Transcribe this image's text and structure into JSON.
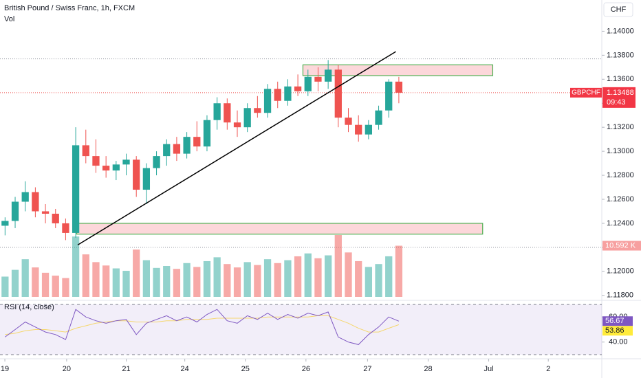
{
  "header": {
    "title": "British Pound / Swiss Franc, 1h, FXCM",
    "volume_label": "Vol",
    "currency": "CHF",
    "symbol": "GBPCHF",
    "countdown": "09:43"
  },
  "chart_data": {
    "type": "candlestick",
    "up_color": "#26a69a",
    "down_color": "#ef5350",
    "xlim": [
      0,
      59.6
    ],
    "xticks": [
      {
        "value": 0.48,
        "label": "19"
      },
      {
        "value": 6.6,
        "label": "20"
      },
      {
        "value": 12.5,
        "label": "21"
      },
      {
        "value": 18.3,
        "label": "24"
      },
      {
        "value": 24.3,
        "label": "25"
      },
      {
        "value": 30.3,
        "label": "26"
      },
      {
        "value": 36.4,
        "label": "27"
      },
      {
        "value": 42.4,
        "label": "28"
      },
      {
        "value": 48.4,
        "label": "Jul"
      },
      {
        "value": 54.3,
        "label": "2"
      }
    ],
    "ylim": [
      1.1177,
      1.1426
    ],
    "yticks": [
      {
        "value": 1.14,
        "label": "1.14000"
      },
      {
        "value": 1.138,
        "label": "1.13800"
      },
      {
        "value": 1.136,
        "label": "1.13600"
      },
      {
        "value": 1.134,
        "label": "1.13400"
      },
      {
        "value": 1.132,
        "label": "1.13200"
      },
      {
        "value": 1.13,
        "label": "1.13000"
      },
      {
        "value": 1.128,
        "label": "1.12800"
      },
      {
        "value": 1.126,
        "label": "1.12600"
      },
      {
        "value": 1.124,
        "label": "1.12400"
      },
      {
        "value": 1.122,
        "label": "1.12200"
      },
      {
        "value": 1.12,
        "label": "1.12000"
      },
      {
        "value": 1.118,
        "label": "1.11800"
      }
    ],
    "open": [
      1.1238,
      1.1242,
      1.1258,
      1.1266,
      1.125,
      1.1248,
      1.124,
      1.1232,
      1.1305,
      1.1296,
      1.1288,
      1.1284,
      1.1289,
      1.1293,
      1.1268,
      1.1286,
      1.1296,
      1.1306,
      1.1298,
      1.1312,
      1.1304,
      1.1326,
      1.134,
      1.1324,
      1.132,
      1.1336,
      1.1332,
      1.1352,
      1.1342,
      1.1354,
      1.135,
      1.1362,
      1.1358,
      1.1368,
      1.1328,
      1.1322,
      1.1314,
      1.1322,
      1.1334,
      1.1358
    ],
    "high": [
      1.1245,
      1.1262,
      1.1275,
      1.127,
      1.1256,
      1.1252,
      1.1244,
      1.132,
      1.1318,
      1.131,
      1.1296,
      1.1292,
      1.1298,
      1.1296,
      1.129,
      1.13,
      1.131,
      1.1312,
      1.1316,
      1.1325,
      1.133,
      1.1345,
      1.1344,
      1.1334,
      1.134,
      1.1346,
      1.1356,
      1.1358,
      1.136,
      1.1364,
      1.1368,
      1.137,
      1.1376,
      1.1372,
      1.1336,
      1.133,
      1.1326,
      1.1338,
      1.136,
      1.1362
    ],
    "low": [
      1.123,
      1.1236,
      1.125,
      1.1245,
      1.124,
      1.1236,
      1.1226,
      1.1228,
      1.129,
      1.1282,
      1.1278,
      1.1276,
      1.128,
      1.1262,
      1.1256,
      1.128,
      1.1288,
      1.1292,
      1.1294,
      1.13,
      1.13,
      1.1318,
      1.1318,
      1.1312,
      1.1316,
      1.1328,
      1.1328,
      1.1336,
      1.1338,
      1.1346,
      1.1346,
      1.135,
      1.1352,
      1.132,
      1.1316,
      1.1308,
      1.131,
      1.1318,
      1.1328,
      1.134
    ],
    "close": [
      1.1242,
      1.1258,
      1.1266,
      1.125,
      1.1248,
      1.124,
      1.1232,
      1.1305,
      1.1296,
      1.1288,
      1.1284,
      1.1289,
      1.1293,
      1.1268,
      1.1286,
      1.1296,
      1.1306,
      1.1298,
      1.1312,
      1.1304,
      1.1326,
      1.134,
      1.1324,
      1.132,
      1.1336,
      1.1332,
      1.1352,
      1.1342,
      1.1354,
      1.135,
      1.1362,
      1.1358,
      1.1368,
      1.1328,
      1.1322,
      1.1314,
      1.1322,
      1.1334,
      1.1358,
      1.13488
    ],
    "last_price": 1.13488,
    "volume": [
      4200,
      5600,
      7800,
      6100,
      5000,
      4400,
      3900,
      12500,
      8800,
      7200,
      6500,
      5900,
      5400,
      9800,
      7600,
      6000,
      6400,
      5800,
      7000,
      6200,
      7400,
      8200,
      6800,
      6100,
      7200,
      6600,
      7800,
      7000,
      7600,
      8400,
      9000,
      8000,
      8600,
      12800,
      9200,
      7400,
      6200,
      6800,
      8400,
      10592
    ],
    "volume_last": {
      "value": 10592,
      "label": "10.592 K"
    },
    "price_lines": [
      1.1377,
      1.122
    ],
    "trendline": [
      [
        7.7,
        1.1222
      ],
      [
        39.2,
        1.1383
      ]
    ],
    "zones": [
      {
        "from": 30.0,
        "to": 48.8,
        "low": 1.1363,
        "high": 1.1372
      },
      {
        "from": 7.6,
        "to": 47.8,
        "low": 1.1231,
        "high": 1.124
      }
    ],
    "rsi": {
      "title": "RSI (14, close)",
      "color": "#7e57c2",
      "ma_color": "#f5d76e",
      "ylim": [
        26.7,
        72.7
      ],
      "yticks": [
        {
          "value": 60,
          "label": "60.00"
        },
        {
          "value": 40,
          "label": "40.00"
        }
      ],
      "bands": [
        70,
        30
      ],
      "values": [
        44,
        50,
        56,
        52,
        48,
        46,
        42,
        66,
        60,
        57,
        55,
        57,
        58,
        46,
        55,
        58,
        61,
        57,
        60,
        56,
        62,
        66,
        57,
        55,
        61,
        58,
        63,
        58,
        62,
        59,
        63,
        61,
        64,
        44,
        40,
        38,
        46,
        52,
        60,
        56.67
      ],
      "ma": [
        46,
        47,
        49,
        50,
        50,
        49,
        48,
        51,
        53,
        55,
        56,
        57,
        57,
        56,
        56,
        56,
        57,
        57,
        58,
        58,
        58,
        59,
        59,
        59,
        59,
        59,
        60,
        60,
        60,
        60,
        60,
        61,
        61,
        58,
        55,
        51,
        48,
        48,
        51,
        53.86
      ]
    }
  }
}
